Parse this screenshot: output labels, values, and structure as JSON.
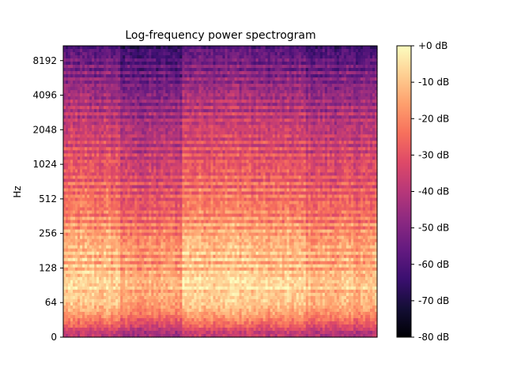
{
  "chart_data": {
    "type": "heatmap",
    "title": "Log-frequency power spectrogram",
    "xlabel": "",
    "ylabel": "Hz",
    "y_scale": "log2",
    "y_tick_labels": [
      "0",
      "64",
      "128",
      "256",
      "512",
      "1024",
      "2048",
      "4096",
      "8192"
    ],
    "y_tick_values": [
      0,
      64,
      128,
      256,
      512,
      1024,
      2048,
      4096,
      8192
    ],
    "ylim": [
      0,
      11025
    ],
    "colorbar": {
      "colormap": "magma",
      "range": [
        -80,
        0
      ],
      "ticks": [
        0,
        -10,
        -20,
        -30,
        -40,
        -50,
        -60,
        -70,
        -80
      ],
      "tick_labels": [
        "+0 dB",
        "-10 dB",
        "-20 dB",
        "-30 dB",
        "-40 dB",
        "-50 dB",
        "-60 dB",
        "-70 dB",
        "-80 dB"
      ]
    },
    "grid": false,
    "legend": "none",
    "band_power_db": [
      {
        "hz": 8,
        "db": -38
      },
      {
        "hz": 16,
        "db": -32
      },
      {
        "hz": 32,
        "db": -22
      },
      {
        "hz": 48,
        "db": -14
      },
      {
        "hz": 64,
        "db": -10
      },
      {
        "hz": 96,
        "db": -6
      },
      {
        "hz": 128,
        "db": -12
      },
      {
        "hz": 192,
        "db": -12
      },
      {
        "hz": 256,
        "db": -16
      },
      {
        "hz": 384,
        "db": -22
      },
      {
        "hz": 512,
        "db": -24
      },
      {
        "hz": 768,
        "db": -28
      },
      {
        "hz": 1024,
        "db": -30
      },
      {
        "hz": 2048,
        "db": -36
      },
      {
        "hz": 4096,
        "db": -44
      },
      {
        "hz": 8192,
        "db": -54
      },
      {
        "hz": 11025,
        "db": -60
      }
    ],
    "time_segments": [
      {
        "start": 0.0,
        "end": 0.18,
        "offset_db": 0
      },
      {
        "start": 0.18,
        "end": 0.38,
        "offset_db": -6
      },
      {
        "start": 0.38,
        "end": 0.6,
        "offset_db": 2
      },
      {
        "start": 0.6,
        "end": 0.77,
        "offset_db": 0
      },
      {
        "start": 0.77,
        "end": 1.0,
        "offset_db": -3
      }
    ]
  },
  "colors": {
    "magma": [
      "#000004",
      "#140e36",
      "#3b0f70",
      "#641a80",
      "#8c2981",
      "#b73779",
      "#de4968",
      "#f7705c",
      "#fe9f6d",
      "#fecf92",
      "#fcfdbf"
    ]
  }
}
